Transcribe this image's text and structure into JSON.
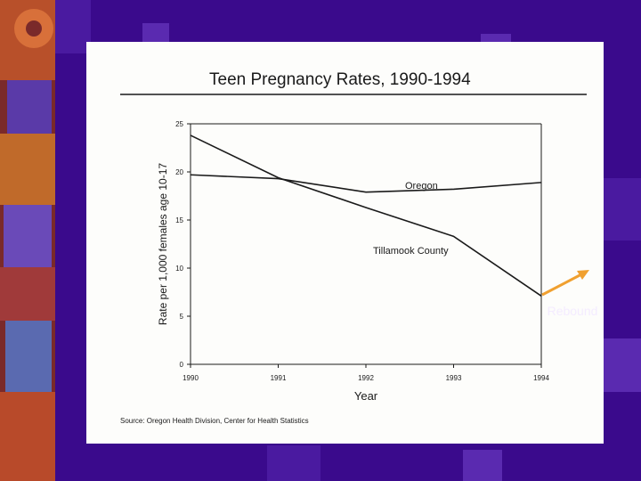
{
  "chart_data": {
    "type": "line",
    "title": "Teen Pregnancy Rates, 1990-1994",
    "xlabel": "Year",
    "ylabel": "Rate per 1,000 females age 10-17",
    "x": [
      "1990",
      "1991",
      "1992",
      "1993",
      "1994"
    ],
    "ylim": [
      0,
      25
    ],
    "yticks": [
      "0",
      "5",
      "10",
      "15",
      "20",
      "25"
    ],
    "grid": false,
    "series": [
      {
        "name": "Oregon",
        "values": [
          19.7,
          19.3,
          17.9,
          18.2,
          18.9
        ]
      },
      {
        "name": "Tillamook County",
        "values": [
          23.8,
          19.4,
          16.3,
          13.3,
          7.1
        ]
      }
    ],
    "source": "Source: Oregon Health Division, Center for Health Statistics",
    "annotation": "Rebound",
    "colors": {
      "background": "#3a0a8c",
      "paper": "#fdfdfb",
      "ink": "#1a1a1a",
      "arrow": "#f0a030",
      "label": "#f4ecff"
    }
  }
}
